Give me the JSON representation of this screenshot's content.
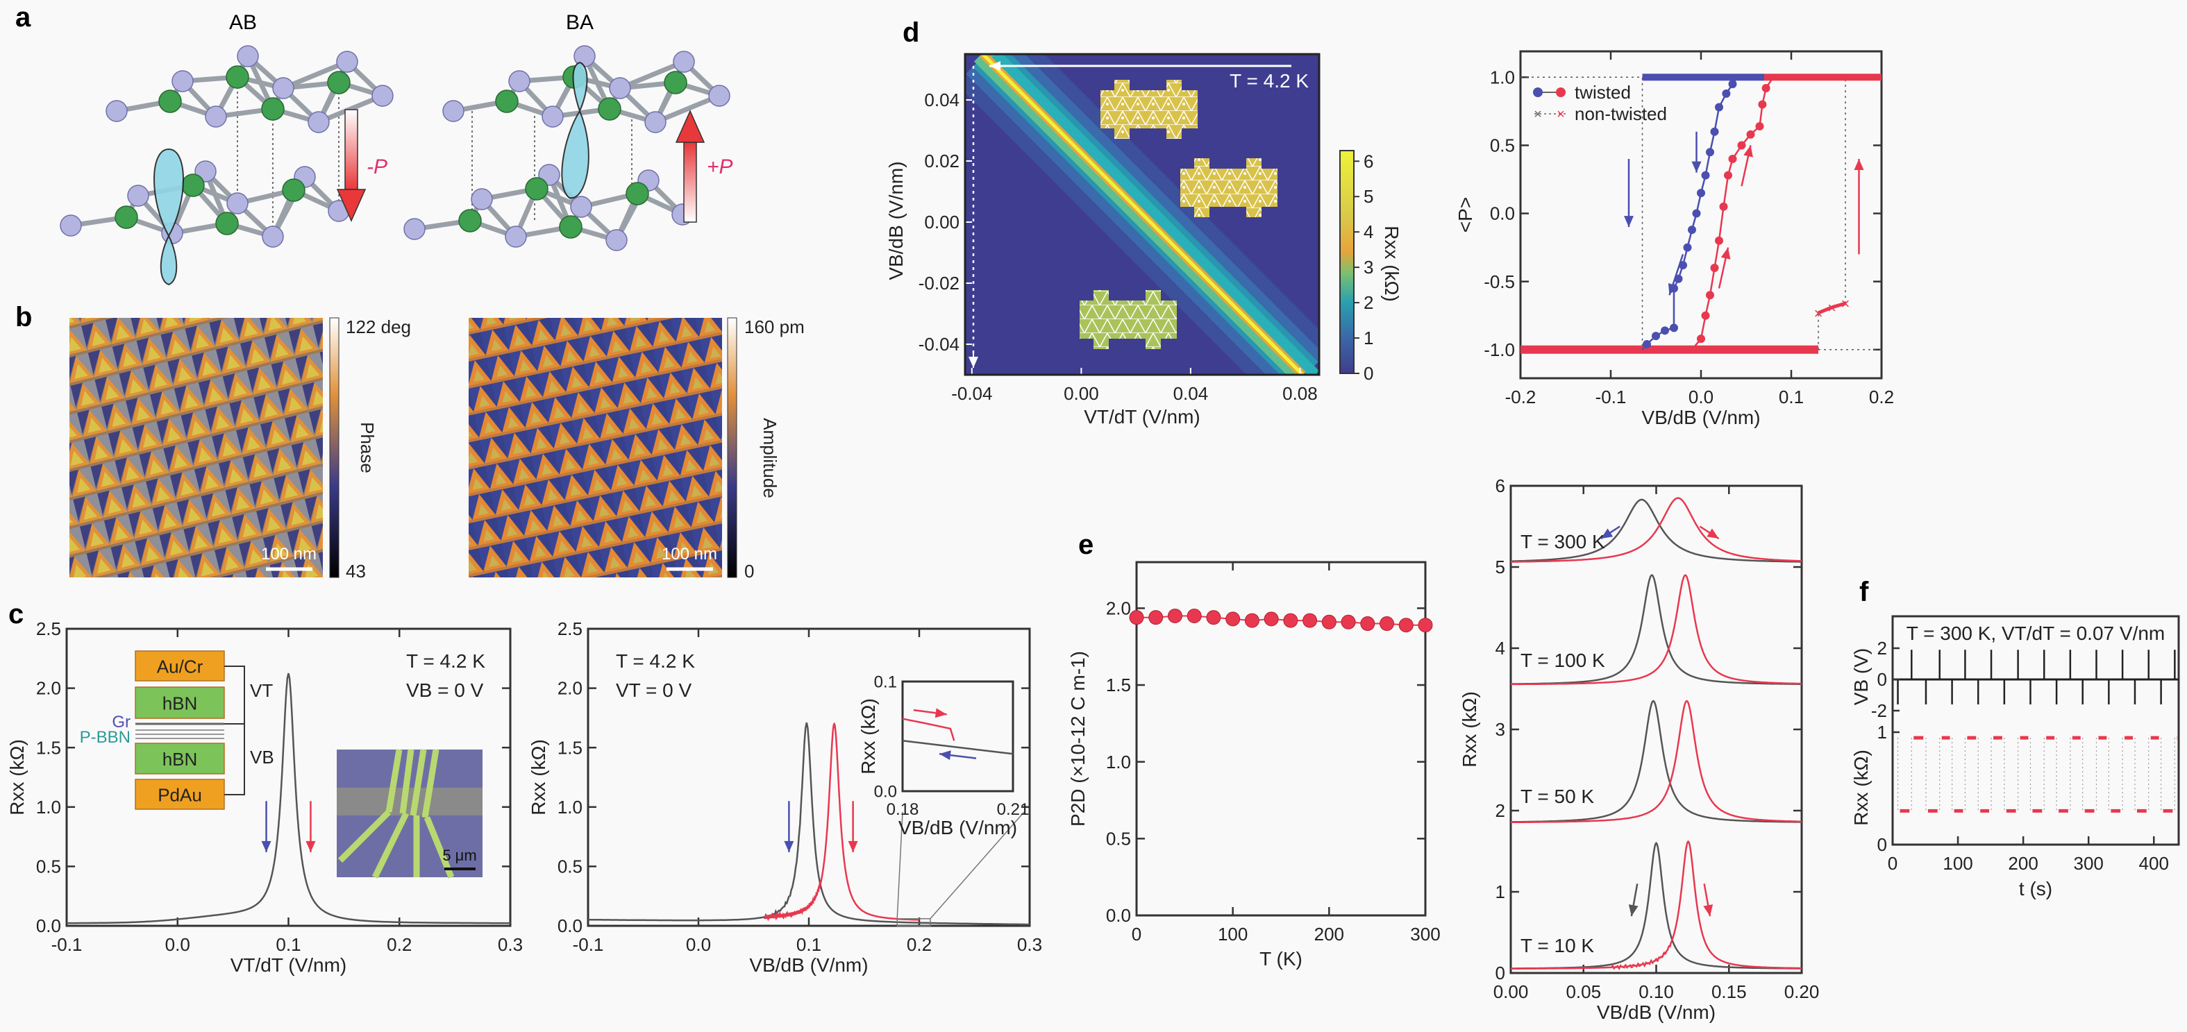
{
  "panels": {
    "a": "a",
    "b": "b",
    "c": "c",
    "d": "d",
    "e": "e",
    "f": "f"
  },
  "panel_a": {
    "left_title": "AB",
    "right_title": "BA",
    "left_arrow": "-P",
    "right_arrow": "+P"
  },
  "panel_b": {
    "phase": {
      "max": "122 deg",
      "min": "43",
      "label": "Phase",
      "scale_bar": "100 nm"
    },
    "amplitude": {
      "max": "160 pm",
      "min": "0",
      "label": "Amplitude",
      "scale_bar": "100 nm"
    }
  },
  "colors": {
    "twisted_backward": "#4a4fb0",
    "forward": "#e8384f",
    "trace_gray": "#555555",
    "heatmap_low": "#3f3d90",
    "heatmap_high": "#eef23a",
    "hBN": "#7cc35a",
    "metal": "#f0a020"
  },
  "chart_data": [
    {
      "id": "c-left",
      "type": "line",
      "xlabel": "VT/dT (V/nm)",
      "ylabel": "Rxx (kΩ)",
      "xlim": [
        -0.1,
        0.3
      ],
      "ylim": [
        0,
        2.5
      ],
      "xticks": [
        -0.1,
        0,
        0.1,
        0.2,
        0.3
      ],
      "xticklabels": [
        "-0.1",
        "0.0",
        "0.1",
        "0.2",
        "0.3"
      ],
      "yticks": [
        0,
        0.5,
        1,
        1.5,
        2,
        2.5
      ],
      "yticklabels": [
        "0.0",
        "0.5",
        "1.0",
        "1.5",
        "2.0",
        "2.5"
      ],
      "annotations": [
        "T = 4.2 K",
        "VB = 0 V"
      ],
      "series": [
        {
          "color": "gray",
          "peak_x": 0.1,
          "peak_R": 2.1,
          "baseline_R": 0.02,
          "half_width": 0.007
        }
      ],
      "schematic": {
        "layers": [
          "Au/Cr",
          "hBN",
          "hBN",
          "PdAu"
        ],
        "side_labels": [
          "Gr",
          "P-BBN"
        ],
        "voltages": [
          "VT",
          "VB"
        ]
      },
      "micrograph_scale_bar": "5 μm"
    },
    {
      "id": "c-right",
      "type": "line",
      "xlabel": "VB/dB (V/nm)",
      "ylabel": "Rxx (kΩ)",
      "xlim": [
        -0.1,
        0.3
      ],
      "ylim": [
        0,
        2.5
      ],
      "xticks": [
        -0.1,
        0,
        0.1,
        0.2,
        0.3
      ],
      "xticklabels": [
        "-0.1",
        "0.0",
        "0.1",
        "0.2",
        "0.3"
      ],
      "yticks": [
        0,
        0.5,
        1,
        1.5,
        2,
        2.5
      ],
      "yticklabels": [
        "0.0",
        "0.5",
        "1.0",
        "1.5",
        "2.0",
        "2.5"
      ],
      "annotations": [
        "T = 4.2 K",
        "VT = 0 V"
      ],
      "series": [
        {
          "color": "gray",
          "peak_x": 0.098,
          "peak_R": 1.72,
          "baseline_R": 0.04,
          "half_width": 0.006
        },
        {
          "color": "red",
          "peak_x": 0.123,
          "peak_R": 1.7,
          "baseline_R": 0.04,
          "half_width": 0.006
        }
      ],
      "inset": {
        "xlabel": "VB/dB (V/nm)",
        "ylabel": "Rxx (kΩ)",
        "xlim": [
          0.18,
          0.21
        ],
        "ylim": [
          0,
          0.1
        ],
        "xticks": [
          0.18,
          0.21
        ],
        "xticklabels": [
          "0.18",
          "0.21"
        ],
        "yticks": [
          0,
          0.1
        ],
        "yticklabels": [
          "0.0",
          "0.1"
        ],
        "red": [
          [
            0.18,
            0.066
          ],
          [
            0.186,
            0.062
          ],
          [
            0.193,
            0.057
          ],
          [
            0.194,
            0.046
          ]
        ],
        "gray": [
          [
            0.18,
            0.046
          ],
          [
            0.19,
            0.042
          ],
          [
            0.2,
            0.038
          ],
          [
            0.21,
            0.034
          ]
        ]
      }
    },
    {
      "id": "d-map",
      "type": "heatmap",
      "xlabel": "VT/dT (V/nm)",
      "ylabel": "VB/dB (V/nm)",
      "xlim": [
        -0.0425,
        0.087
      ],
      "ylim": [
        -0.05,
        0.055
      ],
      "xticks": [
        -0.04,
        0,
        0.04,
        0.08
      ],
      "xticklabels": [
        "-0.04",
        "0.00",
        "0.04",
        "0.08"
      ],
      "yticks": [
        -0.04,
        -0.02,
        0,
        0.02,
        0.04
      ],
      "yticklabels": [
        "-0.04",
        "-0.02",
        "0.00",
        "0.02",
        "0.04"
      ],
      "colorbar": {
        "label": "Rxx (kΩ)",
        "range": [
          0,
          6.3
        ],
        "ticks": [
          0,
          1,
          2,
          3,
          4,
          5,
          6
        ],
        "ticklabels": [
          "0",
          "1",
          "2",
          "3",
          "4",
          "5",
          "6"
        ]
      },
      "ridge": {
        "from": [
          -0.035,
          0.055
        ],
        "to": [
          0.082,
          -0.05
        ],
        "peak_R": 6
      },
      "annotation": "T = 4.2 K"
    },
    {
      "id": "d-hysteresis",
      "type": "scatter",
      "xlabel": "VB/dB (V/nm)",
      "ylabel": "<P>",
      "xlim": [
        -0.2,
        0.2
      ],
      "ylim": [
        -1.21,
        1.19
      ],
      "xticks": [
        -0.2,
        -0.1,
        0,
        0.1,
        0.2
      ],
      "xticklabels": [
        "-0.2",
        "-0.1",
        "0.0",
        "0.1",
        "0.2"
      ],
      "yticks": [
        -1,
        -0.5,
        0,
        0.5,
        1
      ],
      "yticklabels": [
        "-1.0",
        "-0.5",
        "0.0",
        "0.5",
        "1.0"
      ],
      "legend": {
        "placement": "top-left",
        "entries": [
          "twisted",
          "non-twisted"
        ]
      },
      "series": [
        {
          "name": "twisted",
          "sweep": "backward",
          "color": "blue",
          "points": [
            [
              0.2,
              1
            ],
            [
              0.04,
              1
            ],
            [
              0.035,
              0.95
            ],
            [
              0.028,
              0.88
            ],
            [
              0.02,
              0.78
            ],
            [
              0.015,
              0.6
            ],
            [
              0.01,
              0.45
            ],
            [
              0.005,
              0.28
            ],
            [
              0,
              0.15
            ],
            [
              -0.005,
              0.0
            ],
            [
              -0.01,
              -0.12
            ],
            [
              -0.015,
              -0.25
            ],
            [
              -0.02,
              -0.38
            ],
            [
              -0.025,
              -0.48
            ],
            [
              -0.03,
              -0.55
            ],
            [
              -0.03,
              -0.84
            ],
            [
              -0.04,
              -0.86
            ],
            [
              -0.05,
              -0.9
            ],
            [
              -0.06,
              -0.96
            ],
            [
              -0.065,
              -1
            ],
            [
              -0.2,
              -1
            ]
          ]
        },
        {
          "name": "twisted",
          "sweep": "forward",
          "color": "red",
          "points": [
            [
              -0.2,
              -1
            ],
            [
              -0.01,
              -1
            ],
            [
              0,
              -0.92
            ],
            [
              0.005,
              -0.75
            ],
            [
              0.01,
              -0.6
            ],
            [
              0.015,
              -0.4
            ],
            [
              0.02,
              -0.2
            ],
            [
              0.025,
              0.05
            ],
            [
              0.03,
              0.28
            ],
            [
              0.035,
              0.4
            ],
            [
              0.045,
              0.5
            ],
            [
              0.055,
              0.58
            ],
            [
              0.065,
              0.64
            ],
            [
              0.068,
              0.8
            ],
            [
              0.072,
              0.92
            ],
            [
              0.08,
              1
            ],
            [
              0.2,
              1
            ]
          ]
        },
        {
          "name": "non-twisted",
          "sweep": "forward",
          "color": "red",
          "points": [
            [
              -0.2,
              -1
            ],
            [
              0.13,
              -1
            ],
            [
              0.13,
              -0.73
            ],
            [
              0.145,
              -0.69
            ],
            [
              0.16,
              -0.66
            ],
            [
              0.16,
              1
            ],
            [
              0.2,
              1
            ]
          ]
        },
        {
          "name": "non-twisted",
          "sweep": "backward",
          "color": "blue",
          "points": [
            [
              0.2,
              1
            ],
            [
              -0.065,
              1
            ],
            [
              -0.065,
              -1
            ],
            [
              -0.2,
              -1
            ]
          ]
        }
      ]
    },
    {
      "id": "e-polarization",
      "type": "scatter",
      "xlabel": "T (K)",
      "ylabel": "P2D (×10-12 C m-1)",
      "xlim": [
        0,
        300
      ],
      "ylim": [
        0,
        2.3
      ],
      "xticks": [
        0,
        100,
        200,
        300
      ],
      "xticklabels": [
        "0",
        "100",
        "200",
        "300"
      ],
      "yticks": [
        0,
        0.5,
        1,
        1.5,
        2
      ],
      "yticklabels": [
        "0.0",
        "0.5",
        "1.0",
        "1.5",
        "2.0"
      ],
      "x": [
        0,
        20,
        40,
        60,
        80,
        100,
        120,
        140,
        160,
        180,
        200,
        220,
        240,
        260,
        280,
        300
      ],
      "y": [
        1.94,
        1.94,
        1.95,
        1.95,
        1.94,
        1.93,
        1.92,
        1.93,
        1.92,
        1.92,
        1.91,
        1.91,
        1.9,
        1.9,
        1.89,
        1.89
      ]
    },
    {
      "id": "e-temperature",
      "type": "line",
      "xlabel": "VB/dB (V/nm)",
      "ylabel": "Rxx (kΩ)",
      "xlim": [
        0,
        0.2
      ],
      "ylim": [
        0,
        6
      ],
      "xticks": [
        0,
        0.05,
        0.1,
        0.15,
        0.2
      ],
      "xticklabels": [
        "0.00",
        "0.05",
        "0.10",
        "0.15",
        "0.20"
      ],
      "yticks": [
        0,
        1,
        2,
        3,
        4,
        5,
        6
      ],
      "yticklabels": [
        "0",
        "1",
        "2",
        "3",
        "4",
        "5",
        "6"
      ],
      "curves": [
        {
          "label": "T = 300 K",
          "baseline_R": 5.05,
          "gray_peak": [
            0.09,
            5.83
          ],
          "red_peak": [
            0.115,
            5.85
          ],
          "half_width": 0.015
        },
        {
          "label": "T = 100 K",
          "baseline_R": 3.55,
          "gray_peak": [
            0.097,
            4.9
          ],
          "red_peak": [
            0.12,
            4.9
          ],
          "half_width": 0.008
        },
        {
          "label": "T = 50 K",
          "baseline_R": 1.85,
          "gray_peak": [
            0.098,
            3.35
          ],
          "red_peak": [
            0.121,
            3.35
          ],
          "half_width": 0.008
        },
        {
          "label": "T = 10 K",
          "baseline_R": 0.05,
          "gray_peak": [
            0.1,
            1.6
          ],
          "red_peak": [
            0.122,
            1.62
          ],
          "half_width": 0.006
        }
      ]
    },
    {
      "id": "f-switching",
      "type": "line",
      "title": "T = 300 K, VT/dT = 0.07 V/nm",
      "xlabel": "t (s)",
      "ylabel_top": "VB (V)",
      "ylabel_bottom": "Rxx (kΩ)",
      "xlim": [
        0,
        438
      ],
      "xticks": [
        0,
        100,
        200,
        300,
        400
      ],
      "xticklabels": [
        "0",
        "100",
        "200",
        "300",
        "400"
      ],
      "vb_ticks": [
        2,
        0,
        -2
      ],
      "vb_ticklabels": [
        "2",
        "0",
        "-2"
      ],
      "r_ticks": [
        1,
        0
      ],
      "r_ticklabels": [
        "1",
        "0"
      ],
      "vb_pulses": [
        [
          8,
          -1.6
        ],
        [
          29,
          1.9
        ],
        [
          51,
          -1.6
        ],
        [
          72,
          1.9
        ],
        [
          91,
          -1.6
        ],
        [
          111,
          1.9
        ],
        [
          131,
          -1.6
        ],
        [
          151,
          1.9
        ],
        [
          171,
          -1.6
        ],
        [
          192,
          1.9
        ],
        [
          211,
          -1.6
        ],
        [
          232,
          1.9
        ],
        [
          251,
          -1.6
        ],
        [
          272,
          1.9
        ],
        [
          291,
          -1.6
        ],
        [
          312,
          1.9
        ],
        [
          331,
          -1.6
        ],
        [
          352,
          1.9
        ],
        [
          371,
          -1.6
        ],
        [
          392,
          1.9
        ],
        [
          411,
          -1.6
        ],
        [
          432,
          1.9
        ]
      ],
      "r_high": 0.95,
      "r_low": 0.3
    }
  ]
}
